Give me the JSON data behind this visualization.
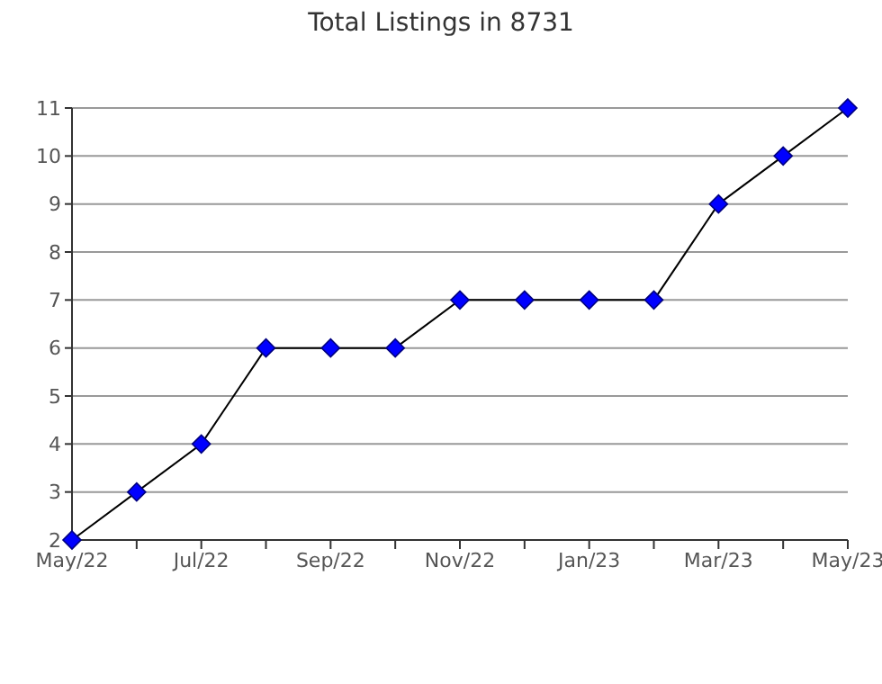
{
  "chart_data": {
    "type": "line",
    "title": "Total Listings in 8731",
    "categories": [
      "May/22",
      null,
      "Jul/22",
      null,
      "Sep/22",
      null,
      "Nov/22",
      null,
      "Jan/23",
      null,
      "Mar/23",
      null,
      "May/23"
    ],
    "series": [
      {
        "color": "#0000ff",
        "values": [
          2,
          3,
          4,
          6,
          6,
          6,
          7,
          7,
          7,
          7,
          9,
          10,
          11
        ]
      }
    ],
    "ylim": [
      2,
      11
    ],
    "yticks": [
      2,
      3,
      4,
      5,
      6,
      7,
      8,
      9,
      10,
      11
    ],
    "grid": "y",
    "legend": false,
    "marker": "diamond",
    "line_style": "solid"
  }
}
